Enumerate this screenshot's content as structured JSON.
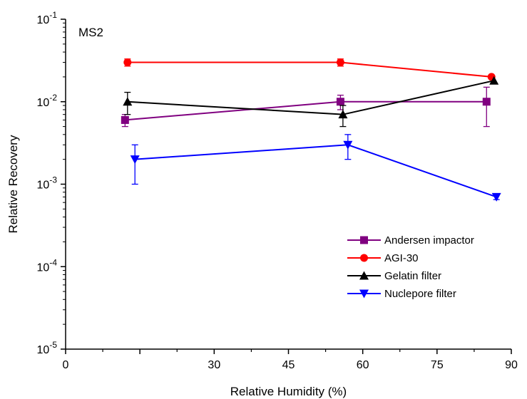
{
  "chart_data": {
    "type": "line",
    "annotation": "MS2",
    "xlabel": "Relative Humidity (%)",
    "ylabel": "Relative Recovery",
    "xlim": [
      0,
      90
    ],
    "ylim": [
      1e-05,
      0.1
    ],
    "y_scale": "log",
    "x_ticks": [
      0,
      15,
      30,
      45,
      60,
      75,
      90
    ],
    "x_tick_labels": [
      "0",
      "",
      "30",
      "45",
      "60",
      "75",
      "90"
    ],
    "y_ticks": [
      1e-05,
      0.0001,
      0.001,
      0.01,
      0.1
    ],
    "y_tick_labels": [
      {
        "base": "10",
        "exp": "-5"
      },
      {
        "base": "10",
        "exp": "-4"
      },
      {
        "base": "10",
        "exp": "-3"
      },
      {
        "base": "10",
        "exp": "-2"
      },
      {
        "base": "10",
        "exp": "-1"
      }
    ],
    "grid": false,
    "legend_position": "bottom-right",
    "series": [
      {
        "name": "Andersen impactor",
        "color": "#800080",
        "marker": "square",
        "x": [
          12,
          55.5,
          85
        ],
        "y": [
          0.006,
          0.01,
          0.01
        ],
        "err_low": [
          0.005,
          0.008,
          0.005
        ],
        "err_high": [
          0.007,
          0.012,
          0.015
        ]
      },
      {
        "name": "AGI-30",
        "color": "#ff0000",
        "marker": "circle",
        "x": [
          12.5,
          55.5,
          86
        ],
        "y": [
          0.03,
          0.03,
          0.02
        ],
        "err_low": [
          0.027,
          0.027,
          null
        ],
        "err_high": [
          0.033,
          0.033,
          null
        ]
      },
      {
        "name": "Gelatin filter",
        "color": "#000000",
        "marker": "triangle-up",
        "x": [
          12.5,
          56,
          86.5
        ],
        "y": [
          0.01,
          0.007,
          0.018
        ],
        "err_low": [
          0.007,
          0.005,
          null
        ],
        "err_high": [
          0.013,
          0.009,
          null
        ]
      },
      {
        "name": "Nuclepore filter",
        "color": "#0000ff",
        "marker": "triangle-down",
        "x": [
          14,
          57,
          87
        ],
        "y": [
          0.002,
          0.003,
          0.0007
        ],
        "err_low": [
          0.001,
          0.002,
          0.00065
        ],
        "err_high": [
          0.003,
          0.004,
          0.00075
        ]
      }
    ]
  }
}
